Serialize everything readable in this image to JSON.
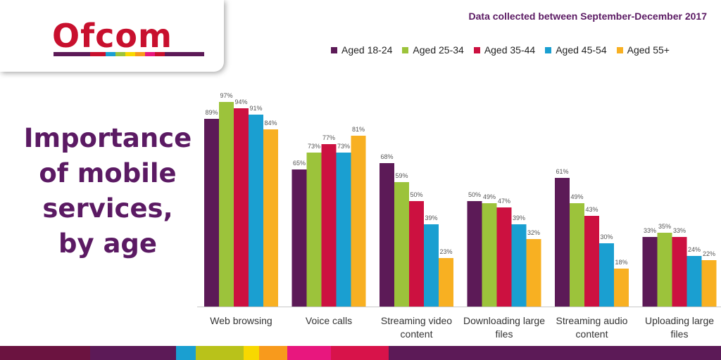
{
  "logo": {
    "text": "Ofcom"
  },
  "title_lines": [
    "Importance",
    "of mobile",
    "services,",
    "by age"
  ],
  "subtitle": "Data collected between September-December 2017",
  "colors": {
    "brand_purple": "#5b1a63",
    "logo_red": "#c8102e",
    "series": [
      "#5c1a57",
      "#9cc33b",
      "#cc1140",
      "#1a9fd1",
      "#f8b022"
    ],
    "logo_stripes": [
      "#5c1a57",
      "#c8102e",
      "#1a9fd1",
      "#9cc33b",
      "#f8d800",
      "#f89a1c",
      "#e8177e",
      "#c8102e",
      "#5c1a57"
    ],
    "bottom_stripes": [
      "#6b1340",
      "#5c1a57",
      "#1a9fd1",
      "#b9c21a",
      "#f8d800",
      "#f89a1c",
      "#e8177e",
      "#d8134a",
      "#5c1a57"
    ]
  },
  "chart_data": {
    "type": "bar",
    "categories": [
      [
        "Web browsing"
      ],
      [
        "Voice calls"
      ],
      [
        "Streaming video",
        "content"
      ],
      [
        "Downloading large",
        "files"
      ],
      [
        "Streaming audio",
        "content"
      ],
      [
        "Uploading large",
        "files"
      ]
    ],
    "series": [
      {
        "name": "Aged 18-24",
        "values": [
          89,
          65,
          68,
          50,
          61,
          33
        ]
      },
      {
        "name": "Aged 25-34",
        "values": [
          97,
          73,
          59,
          49,
          49,
          35
        ]
      },
      {
        "name": "Aged 35-44",
        "values": [
          94,
          77,
          50,
          47,
          43,
          33
        ]
      },
      {
        "name": "Aged 45-54",
        "values": [
          91,
          73,
          39,
          39,
          30,
          24
        ]
      },
      {
        "name": "Aged 55+",
        "values": [
          84,
          81,
          23,
          32,
          18,
          22
        ]
      }
    ],
    "value_suffix": "%",
    "ylim": [
      0,
      100
    ],
    "grid": false,
    "legend_position": "top-right"
  }
}
